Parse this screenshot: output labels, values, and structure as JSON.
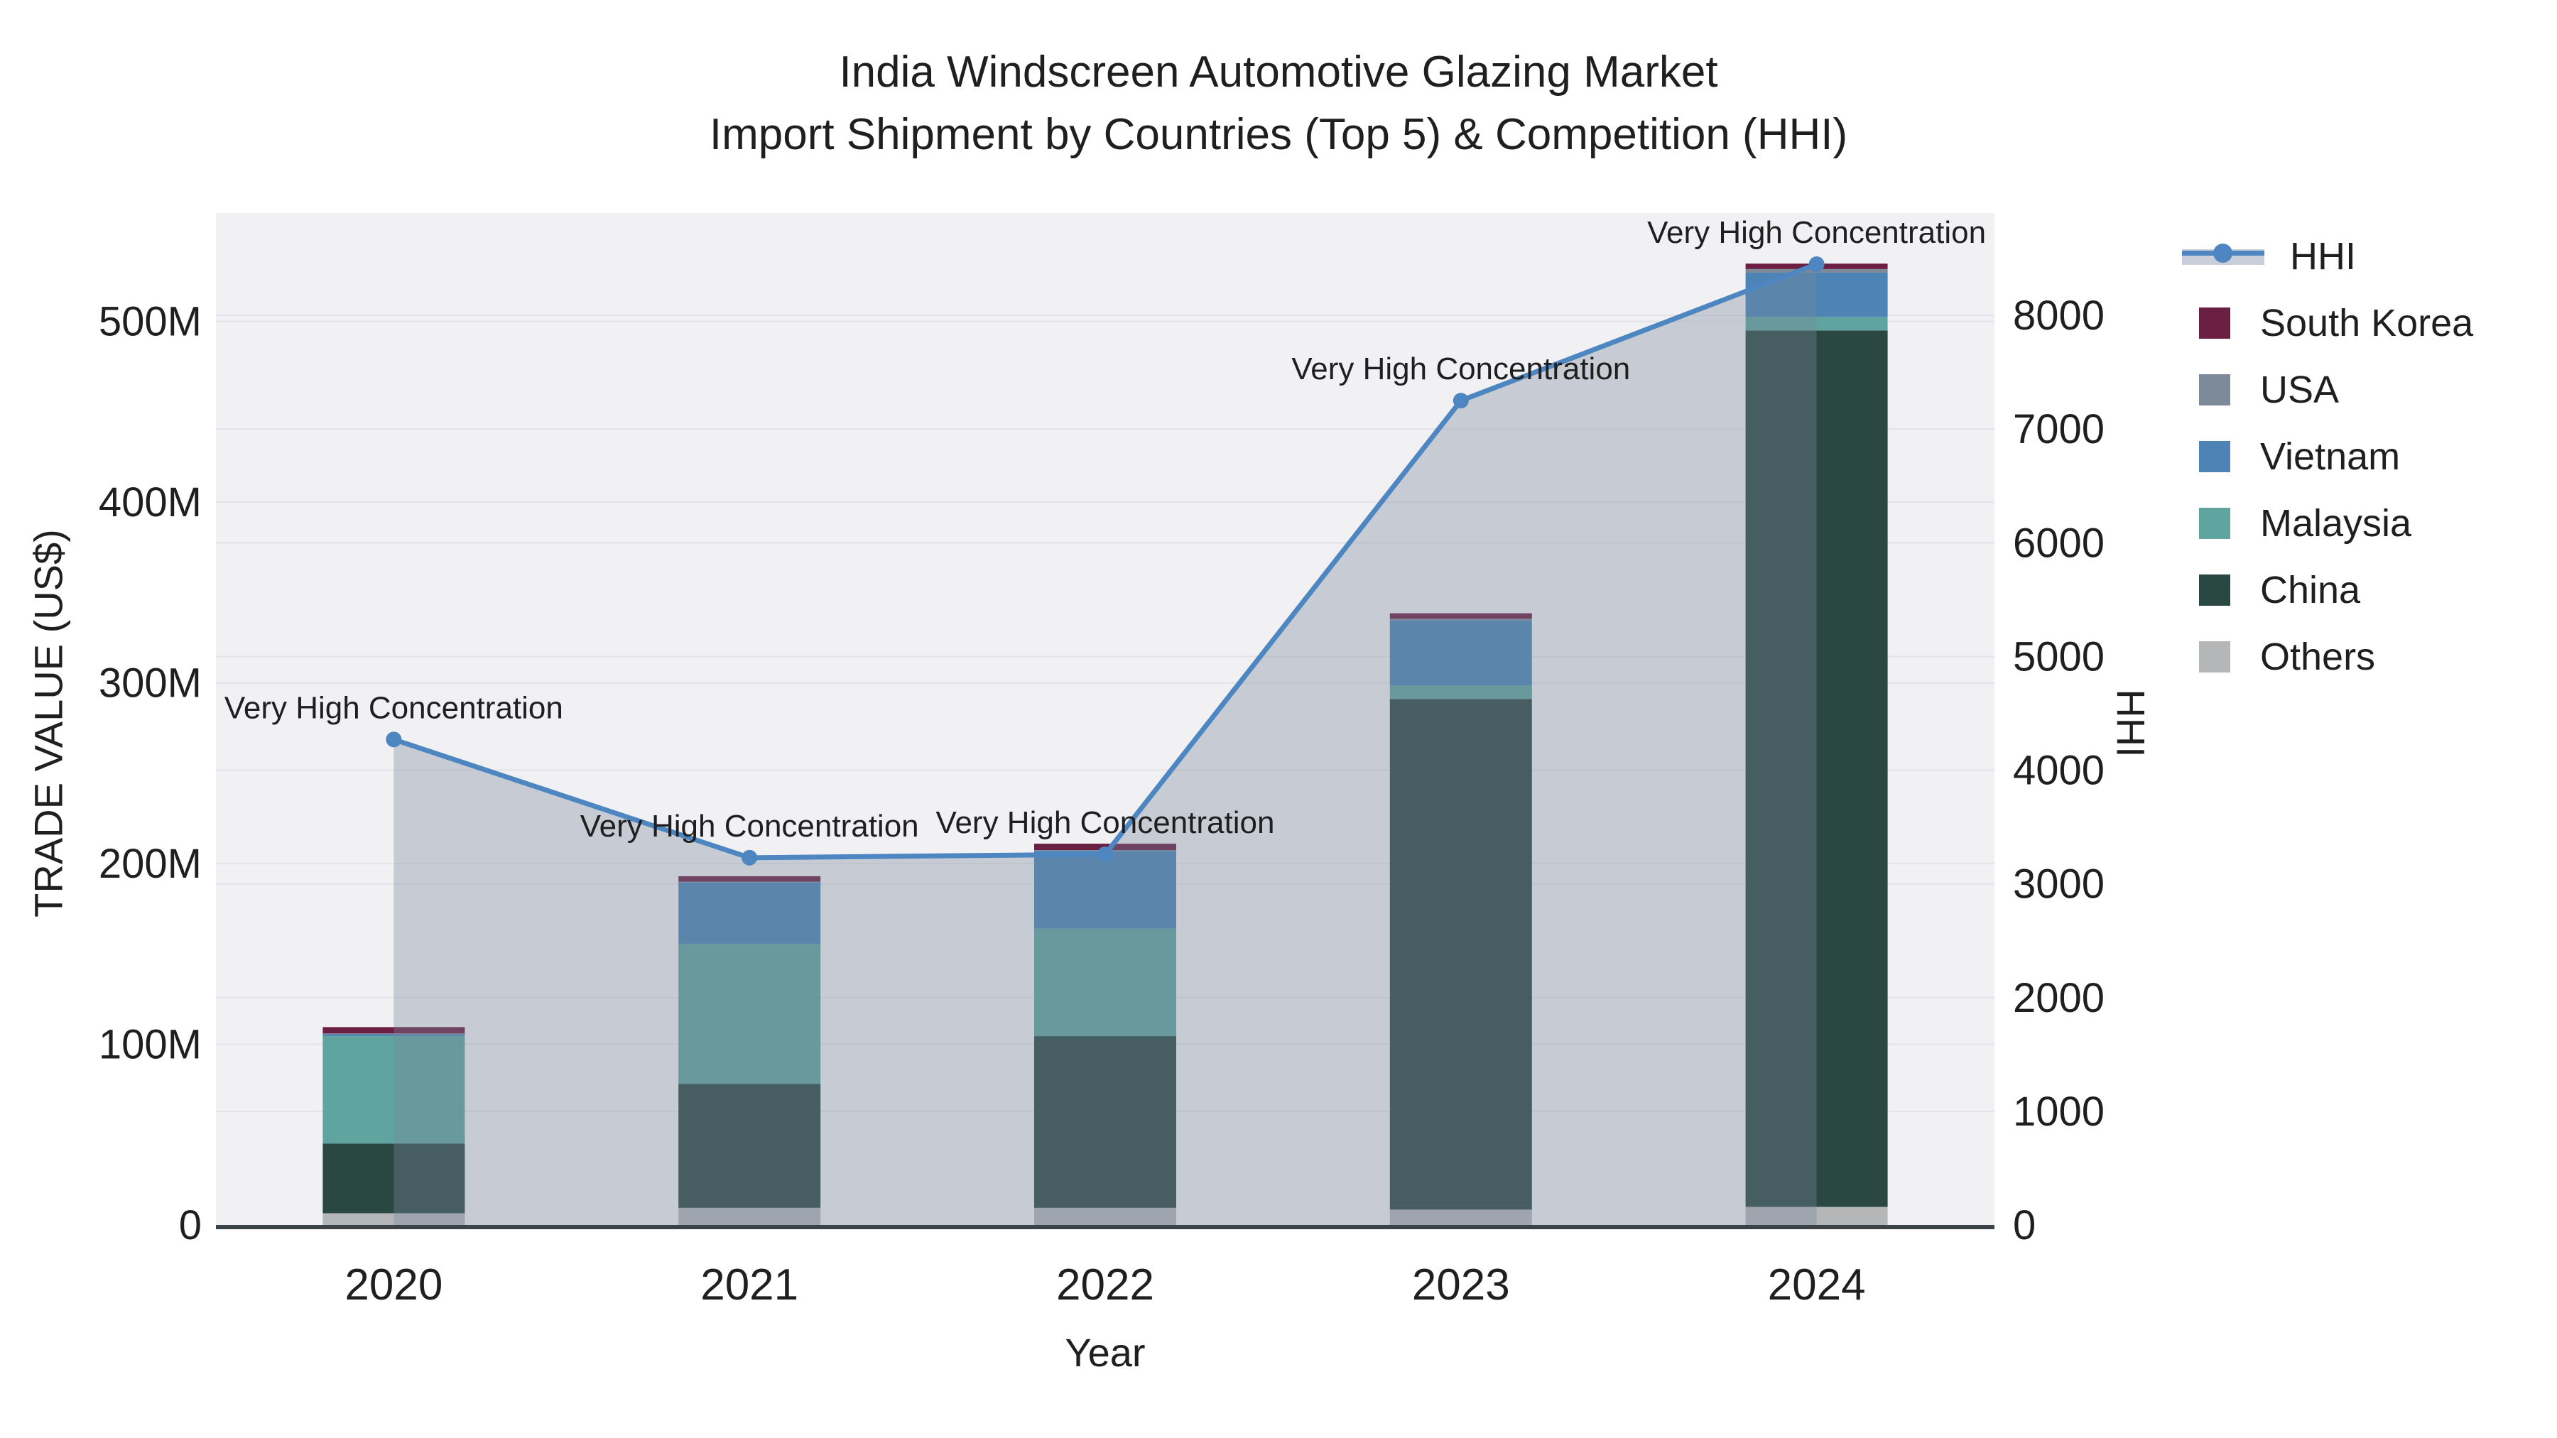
{
  "title": {
    "line1": "India Windscreen Automotive Glazing Market",
    "line2": "Import Shipment by Countries (Top 5) & Competition (HHI)"
  },
  "axes": {
    "x_title": "Year",
    "y_left_title": "TRADE VALUE (US$)",
    "y_right_title": "HHI"
  },
  "legend": {
    "items": [
      {
        "label": "HHI",
        "type": "line",
        "color": "#4d86c0"
      },
      {
        "label": "South Korea",
        "type": "swatch",
        "color": "#6b2043"
      },
      {
        "label": "USA",
        "type": "swatch",
        "color": "#7c8a9a"
      },
      {
        "label": "Vietnam",
        "type": "swatch",
        "color": "#4e84b5"
      },
      {
        "label": "Malaysia",
        "type": "swatch",
        "color": "#5fa49f"
      },
      {
        "label": "China",
        "type": "swatch",
        "color": "#2b4742"
      },
      {
        "label": "Others",
        "type": "swatch",
        "color": "#b4b6b8"
      }
    ]
  },
  "chart_data": {
    "type": "bar+line",
    "title": "India Windscreen Automotive Glazing Market — Import Shipment by Countries (Top 5) & Competition (HHI)",
    "categories": [
      "2020",
      "2021",
      "2022",
      "2023",
      "2024"
    ],
    "bar_unit": "US$ millions",
    "series": [
      {
        "name": "Others",
        "color": "#b4b6b8",
        "values": [
          6.5,
          9.5,
          9.5,
          8.5,
          10
        ]
      },
      {
        "name": "China",
        "color": "#2b4742",
        "values": [
          38.5,
          68.5,
          95,
          282.5,
          485
        ]
      },
      {
        "name": "Malaysia",
        "color": "#5fa49f",
        "values": [
          59.5,
          77.5,
          59.5,
          7.5,
          7.5
        ]
      },
      {
        "name": "Vietnam",
        "color": "#4e84b5",
        "values": [
          1,
          34,
          43,
          36,
          24.5
        ]
      },
      {
        "name": "USA",
        "color": "#7c8a9a",
        "values": [
          0.5,
          0.5,
          0.5,
          1,
          2
        ]
      },
      {
        "name": "South Korea",
        "color": "#6b2043",
        "values": [
          3.5,
          3,
          3.5,
          3,
          3
        ]
      }
    ],
    "line_series": {
      "name": "HHI",
      "color": "#4d86c0",
      "area_fill": "rgba(120,135,155,0.35)",
      "values": [
        4270,
        3230,
        3260,
        7250,
        8450
      ]
    },
    "annotations": [
      "Very High Concentration",
      "Very High Concentration",
      "Very High Concentration",
      "Very High Concentration",
      "Very High Concentration"
    ],
    "xlabel": "Year",
    "y_left": {
      "label": "TRADE VALUE (US$)",
      "range_millions": [
        0,
        560
      ],
      "tick_values_millions": [
        0,
        100,
        200,
        300,
        400,
        500
      ],
      "tick_labels": [
        "0",
        "100M",
        "200M",
        "300M",
        "400M",
        "500M"
      ]
    },
    "y_right": {
      "label": "HHI",
      "range": [
        0,
        8900
      ],
      "tick_values": [
        0,
        1000,
        2000,
        3000,
        4000,
        5000,
        6000,
        7000,
        8000
      ],
      "tick_labels": [
        "0",
        "1000",
        "2000",
        "3000",
        "4000",
        "5000",
        "6000",
        "7000",
        "8000"
      ]
    },
    "grid": true,
    "legend_position": "right"
  }
}
